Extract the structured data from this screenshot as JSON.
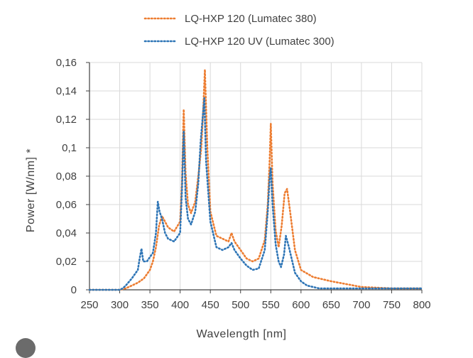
{
  "chart_data": {
    "type": "line",
    "xlabel": "Wavelength [nm]",
    "ylabel": "Power [W/nm] *",
    "xlim": [
      250,
      800
    ],
    "ylim": [
      0,
      0.16
    ],
    "xticks": [
      "250",
      "300",
      "350",
      "400",
      "450",
      "500",
      "550",
      "600",
      "650",
      "700",
      "750",
      "800"
    ],
    "yticks": [
      "0",
      "0,02",
      "0,04",
      "0,06",
      "0,08",
      "0,1",
      "0,12",
      "0,14",
      "0,16"
    ],
    "grid": true,
    "legend_position": "top",
    "line_style": "dotted",
    "series": [
      {
        "name": "LQ-HXP 120 (Lumatec 380)",
        "color": "#ed7d31",
        "x": [
          250,
          300,
          310,
          320,
          330,
          340,
          350,
          355,
          360,
          365,
          370,
          380,
          390,
          400,
          403,
          406,
          409,
          413,
          418,
          425,
          430,
          435,
          438,
          441,
          445,
          450,
          460,
          470,
          480,
          485,
          490,
          500,
          510,
          520,
          530,
          540,
          545,
          548,
          550,
          553,
          558,
          563,
          568,
          573,
          577,
          582,
          590,
          600,
          620,
          650,
          700,
          750,
          800
        ],
        "y": [
          0,
          0,
          0.001,
          0.003,
          0.005,
          0.008,
          0.014,
          0.02,
          0.03,
          0.045,
          0.052,
          0.044,
          0.041,
          0.048,
          0.075,
          0.127,
          0.082,
          0.06,
          0.054,
          0.062,
          0.08,
          0.1,
          0.125,
          0.155,
          0.1,
          0.055,
          0.038,
          0.036,
          0.034,
          0.04,
          0.034,
          0.028,
          0.022,
          0.02,
          0.022,
          0.035,
          0.06,
          0.09,
          0.117,
          0.075,
          0.042,
          0.03,
          0.045,
          0.068,
          0.071,
          0.055,
          0.028,
          0.014,
          0.009,
          0.006,
          0.002,
          0.001,
          0.001
        ]
      },
      {
        "name": "LQ-HXP 120 UV (Lumatec 300)",
        "color": "#2e75b6",
        "x": [
          250,
          300,
          305,
          310,
          320,
          330,
          333,
          336,
          339,
          345,
          355,
          360,
          363,
          366,
          370,
          375,
          380,
          390,
          400,
          403,
          406,
          409,
          413,
          418,
          425,
          430,
          434,
          438,
          440,
          443,
          450,
          460,
          470,
          480,
          485,
          490,
          500,
          510,
          520,
          530,
          540,
          545,
          548,
          550,
          553,
          558,
          563,
          567,
          572,
          575,
          580,
          590,
          600,
          610,
          630,
          650,
          700,
          750,
          800
        ],
        "y": [
          0,
          0,
          0.001,
          0.003,
          0.008,
          0.014,
          0.022,
          0.029,
          0.02,
          0.02,
          0.026,
          0.04,
          0.062,
          0.055,
          0.05,
          0.04,
          0.036,
          0.034,
          0.04,
          0.07,
          0.112,
          0.065,
          0.05,
          0.046,
          0.055,
          0.075,
          0.105,
          0.125,
          0.135,
          0.09,
          0.048,
          0.03,
          0.028,
          0.03,
          0.033,
          0.028,
          0.022,
          0.017,
          0.014,
          0.015,
          0.028,
          0.055,
          0.078,
          0.086,
          0.06,
          0.032,
          0.02,
          0.016,
          0.025,
          0.038,
          0.03,
          0.012,
          0.006,
          0.003,
          0.001,
          0.001,
          0.001,
          0.001,
          0.001
        ]
      }
    ]
  }
}
